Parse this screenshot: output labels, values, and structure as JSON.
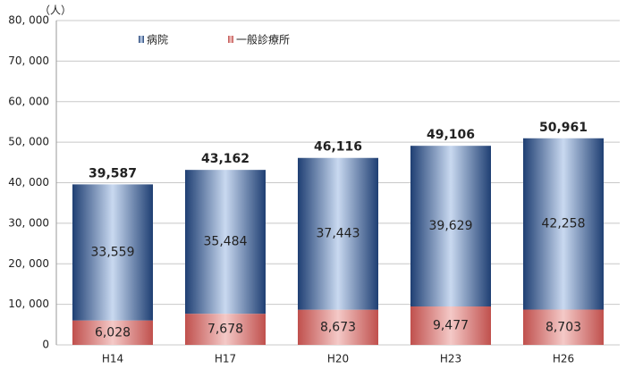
{
  "chart_data": {
    "type": "stacked_bar",
    "y_unit": "（人）",
    "categories": [
      "H14",
      "H17",
      "H20",
      "H23",
      "H26"
    ],
    "series": [
      {
        "name": "病院",
        "color": "#1f3f73",
        "values": [
          33559,
          35484,
          37443,
          39629,
          42258
        ],
        "value_labels": [
          "33,559",
          "35,484",
          "37,443",
          "39,629",
          "42,258"
        ]
      },
      {
        "name": "一般診療所",
        "color": "#c0504d",
        "values": [
          6028,
          7678,
          8673,
          9477,
          8703
        ],
        "value_labels": [
          "6,028",
          "7,678",
          "8,673",
          "9,477",
          "8,703"
        ]
      }
    ],
    "totals": {
      "values": [
        39587,
        43162,
        46116,
        49106,
        50961
      ],
      "value_labels": [
        "39,587",
        "43,162",
        "46,116",
        "49,106",
        "50,961"
      ]
    },
    "ylim": [
      0,
      80000
    ],
    "yticks": [
      0,
      {
        "value": 10000,
        "label": "10, 000"
      },
      {
        "value": 20000,
        "label": "20, 000"
      },
      {
        "value": 30000,
        "label": "30, 000"
      },
      {
        "value": 40000,
        "label": "40, 000"
      },
      {
        "value": 50000,
        "label": "50, 000"
      },
      {
        "value": 60000,
        "label": "60, 000"
      },
      {
        "value": 70000,
        "label": "70, 000"
      },
      {
        "value": 80000,
        "label": "80, 000"
      }
    ],
    "grid": true,
    "legend": "top-left"
  }
}
